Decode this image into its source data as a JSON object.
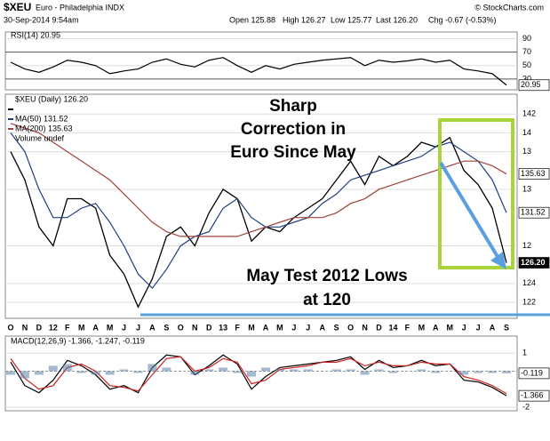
{
  "header": {
    "symbol": "$XEU",
    "name": "Euro - Philadelphia INDX",
    "date": "30-Sep-2014 9:54am",
    "quote": [
      "Open 125.88",
      "High 126.27",
      "Low 125.77",
      "Last 126.20",
      "Chg -0.67 (-0.53%)"
    ],
    "source": "© StockCharts.com"
  },
  "chart_data": [
    {
      "type": "line",
      "title": "RSI(14) 20.95",
      "ylim": [
        14,
        100
      ],
      "yticks": [
        30,
        50,
        70,
        90
      ],
      "series": [
        {
          "name": "RSI(14)",
          "color": "#000000",
          "last_label": "20.95",
          "values": [
            55,
            45,
            40,
            48,
            58,
            55,
            50,
            38,
            42,
            45,
            55,
            60,
            52,
            48,
            58,
            62,
            50,
            40,
            50,
            45,
            52,
            55,
            58,
            60,
            62,
            50,
            58,
            55,
            57,
            60,
            55,
            58,
            45,
            42,
            38,
            20.95
          ]
        }
      ]
    },
    {
      "type": "line",
      "ylim": [
        120.3,
        144.1
      ],
      "grid": true,
      "yticks": [
        122,
        124,
        {
          "value": 128,
          "label": "12"
        },
        {
          "value": 134,
          "label": "13"
        },
        {
          "value": 138,
          "label": "13"
        },
        {
          "value": 140,
          "label": "14"
        },
        142
      ],
      "categories": [
        "O",
        "N",
        "D",
        "12",
        "F",
        "M",
        "A",
        "M",
        "J",
        "J",
        "A",
        "S",
        "O",
        "N",
        "D",
        "13",
        "F",
        "M",
        "A",
        "M",
        "J",
        "J",
        "A",
        "S",
        "O",
        "N",
        "D",
        "14",
        "F",
        "M",
        "A",
        "M",
        "J",
        "J",
        "A",
        "S"
      ],
      "legend_extra": "Volume undef",
      "annotations": [
        [
          "Sharp",
          "Correction in",
          "Euro Since May"
        ],
        [
          "May Test 2012 Lows",
          "at 120"
        ]
      ],
      "series": [
        {
          "name": "$XEU (Daily) 126.20",
          "color": "#000000",
          "last_label": "126.20",
          "values": [
            138,
            135,
            130,
            128,
            133,
            133,
            132,
            127,
            125,
            121.5,
            124.5,
            129,
            130,
            128,
            131.5,
            134,
            133,
            128.5,
            130,
            129.5,
            131,
            132,
            133,
            135,
            137,
            134.5,
            137.5,
            136.5,
            137.5,
            139,
            138.5,
            139.5,
            136,
            134.5,
            132,
            126.2
          ]
        },
        {
          "name": "MA(50) 131.52",
          "color": "#1f3f7f",
          "last_label": "131.52",
          "values": [
            140,
            138,
            134,
            131,
            131,
            132,
            132.5,
            130.5,
            128,
            125,
            123.5,
            125.5,
            128,
            129,
            129.5,
            132,
            133,
            131,
            130,
            130,
            130.5,
            131,
            132.5,
            133.5,
            135,
            135.5,
            136,
            136.5,
            137,
            137.5,
            138.5,
            139,
            138,
            137,
            135,
            131.52
          ]
        },
        {
          "name": "MA(200) 135.63",
          "color": "#a0403a",
          "last_label": "135.63",
          "values": [
            141,
            140.5,
            140,
            139,
            138,
            137,
            136,
            135,
            133.5,
            132,
            130.5,
            129.5,
            129,
            129,
            129,
            129,
            129,
            129.5,
            130,
            130.5,
            131,
            131,
            131,
            131.5,
            132.5,
            133,
            134,
            134.5,
            135,
            135.5,
            136,
            136.5,
            137,
            137,
            136.5,
            135.63
          ]
        }
      ]
    },
    {
      "type": "line",
      "title": "MACD(12,26,9) -1.366, -1.247, -0.119",
      "ylim": [
        -2.2,
        1.95
      ],
      "yticks": [
        -2,
        1
      ],
      "series": [
        {
          "name": "MACD",
          "color": "#000000",
          "last_label": "-1.366",
          "values": [
            0.5,
            -0.8,
            -1.2,
            -0.5,
            0.6,
            0.3,
            -0.2,
            -1.0,
            -0.8,
            -1.2,
            0.2,
            0.9,
            0.8,
            -0.2,
            0.3,
            0.9,
            0.4,
            -1.0,
            -0.3,
            0.2,
            0.3,
            0.4,
            0.5,
            0.6,
            0.8,
            0.1,
            0.6,
            0.2,
            0.3,
            0.6,
            0.3,
            0.4,
            -0.5,
            -0.6,
            -0.9,
            -1.366
          ]
        },
        {
          "name": "Signal",
          "color": "#cc2222",
          "values": [
            0.7,
            -0.4,
            -1.0,
            -0.8,
            0.2,
            0.4,
            0.0,
            -0.8,
            -0.9,
            -1.1,
            -0.2,
            0.7,
            0.8,
            0.0,
            0.2,
            0.7,
            0.5,
            -0.7,
            -0.5,
            0.1,
            0.2,
            0.3,
            0.5,
            0.5,
            0.7,
            0.3,
            0.5,
            0.3,
            0.3,
            0.5,
            0.4,
            0.4,
            -0.3,
            -0.5,
            -0.8,
            -1.247
          ]
        },
        {
          "name": "Histogram",
          "type": "bar",
          "color": "#5b7fa6",
          "last_label": "-0.119",
          "values": [
            -0.2,
            -0.4,
            -0.2,
            0.3,
            0.4,
            -0.1,
            -0.2,
            -0.2,
            0.1,
            -0.1,
            0.4,
            0.2,
            0,
            -0.2,
            0.1,
            0.2,
            -0.1,
            -0.3,
            0.2,
            0.1,
            0.1,
            0.1,
            0,
            0.1,
            0.1,
            -0.2,
            0.1,
            -0.1,
            0,
            0.1,
            -0.1,
            0,
            -0.2,
            -0.1,
            -0.1,
            -0.119
          ]
        }
      ]
    }
  ]
}
